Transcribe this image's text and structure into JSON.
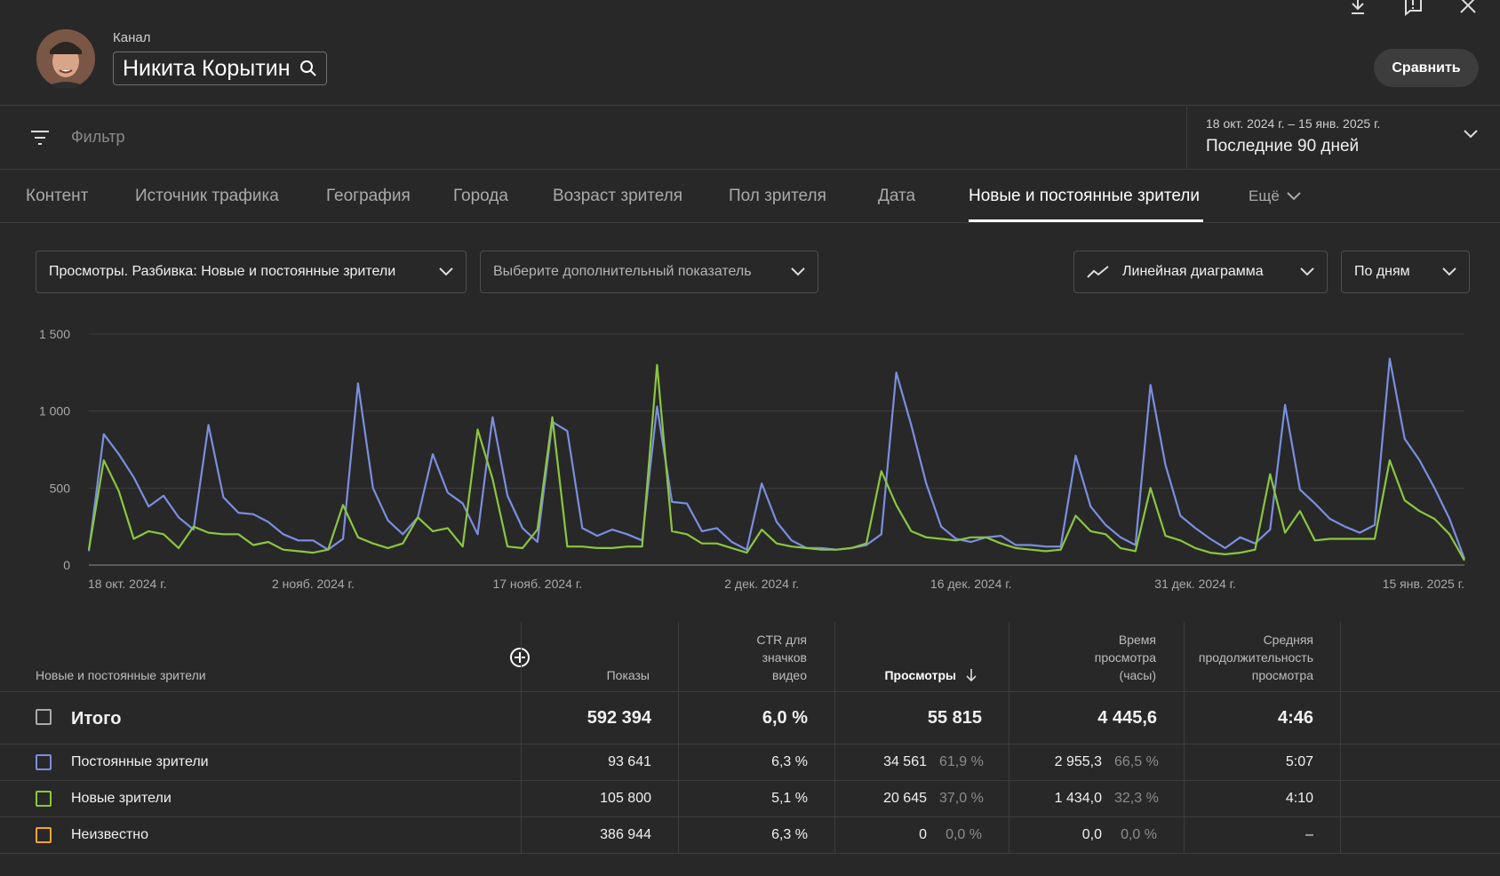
{
  "header": {
    "channel_caption": "Канал",
    "channel_name": "Никита Корытин",
    "compare_label": "Сравнить"
  },
  "filter": {
    "placeholder": "Фильтр",
    "date_range": "18 окт. 2024 г. – 15 янв. 2025 г.",
    "date_label": "Последние 90 дней"
  },
  "tabs": [
    {
      "label": "Контент"
    },
    {
      "label": "Источник трафика"
    },
    {
      "label": "География"
    },
    {
      "label": "Города"
    },
    {
      "label": "Возраст зрителя"
    },
    {
      "label": "Пол зрителя"
    },
    {
      "label": "Дата"
    },
    {
      "label": "Новые и постоянные зрители"
    },
    {
      "label": "Ещё"
    }
  ],
  "active_tab": "Новые и постоянные зрители",
  "controls": {
    "metric": "Просмотры. Разбивка: Новые и постоянные зрители",
    "secondary": "Выберите дополнительный показатель",
    "chart_type": "Линейная диаграмма",
    "granularity": "По дням"
  },
  "chart_data": {
    "type": "line",
    "ylim": [
      0,
      1500
    ],
    "y_ticks": [
      "0",
      "500",
      "1 000",
      "1 500"
    ],
    "x_ticks": [
      "18 окт. 2024 г.",
      "2 нояб. 2024 г.",
      "17 нояб. 2024 г.",
      "2 дек. 2024 г.",
      "16 дек. 2024 г.",
      "31 дек. 2024 г.",
      "15 янв. 2025 г."
    ],
    "x_start": "2024-10-18",
    "x_end": "2025-01-15",
    "series": [
      {
        "name": "Постоянные зрители",
        "color": "#7b8ee0",
        "values": [
          90,
          850,
          720,
          570,
          380,
          450,
          310,
          230,
          910,
          440,
          340,
          330,
          280,
          200,
          160,
          160,
          100,
          170,
          1180,
          500,
          290,
          200,
          310,
          720,
          470,
          400,
          200,
          960,
          450,
          240,
          150,
          930,
          870,
          240,
          190,
          230,
          200,
          160,
          1030,
          410,
          400,
          220,
          240,
          150,
          100,
          530,
          280,
          160,
          110,
          110,
          100,
          110,
          130,
          200,
          1250,
          910,
          530,
          250,
          170,
          150,
          180,
          190,
          130,
          130,
          120,
          120,
          710,
          380,
          260,
          180,
          130,
          1170,
          650,
          320,
          240,
          170,
          110,
          180,
          140,
          230,
          1040,
          490,
          400,
          300,
          250,
          210,
          260,
          1340,
          820,
          680,
          500,
          300,
          40
        ]
      },
      {
        "name": "Новые зрители",
        "color": "#8cc63f",
        "values": [
          100,
          680,
          480,
          170,
          220,
          200,
          110,
          250,
          210,
          200,
          200,
          130,
          150,
          100,
          90,
          80,
          100,
          390,
          180,
          140,
          110,
          140,
          310,
          220,
          240,
          120,
          880,
          560,
          120,
          110,
          230,
          960,
          120,
          120,
          110,
          110,
          120,
          120,
          1300,
          220,
          200,
          140,
          140,
          110,
          80,
          230,
          140,
          120,
          110,
          100,
          100,
          110,
          140,
          610,
          390,
          220,
          180,
          170,
          160,
          180,
          180,
          140,
          110,
          100,
          90,
          100,
          320,
          220,
          200,
          110,
          90,
          500,
          190,
          160,
          110,
          80,
          70,
          80,
          100,
          590,
          210,
          350,
          160,
          170,
          170,
          170,
          170,
          680,
          420,
          350,
          300,
          200,
          30
        ]
      }
    ]
  },
  "table": {
    "headers": {
      "dimension": "Новые и постоянные зрители",
      "impressions": "Показы",
      "ctr": "CTR для значков видео",
      "views": "Просмотры",
      "watch_time": "Время просмотра (часы)",
      "avg_duration": "Средняя продолжительность просмотра"
    },
    "total": {
      "label": "Итого",
      "impressions": "592 394",
      "ctr": "6,0 %",
      "views": "55 815",
      "watch_time": "4 445,6",
      "avg_duration": "4:46"
    },
    "rows": [
      {
        "label": "Постоянные зрители",
        "color": "#7b8ee0",
        "impressions": "93 641",
        "ctr": "6,3 %",
        "views": "34 561",
        "views_pct": "61,9 %",
        "watch_time": "2 955,3",
        "watch_pct": "66,5 %",
        "avg_duration": "5:07"
      },
      {
        "label": "Новые зрители",
        "color": "#8cc63f",
        "impressions": "105 800",
        "ctr": "5,1 %",
        "views": "20 645",
        "views_pct": "37,0 %",
        "watch_time": "1 434,0",
        "watch_pct": "32,3 %",
        "avg_duration": "4:10"
      },
      {
        "label": "Неизвестно",
        "color": "#f1a532",
        "impressions": "386 944",
        "ctr": "6,3 %",
        "views": "0",
        "views_pct": "0,0 %",
        "watch_time": "0,0",
        "watch_pct": "0,0 %",
        "avg_duration": "–"
      }
    ]
  }
}
